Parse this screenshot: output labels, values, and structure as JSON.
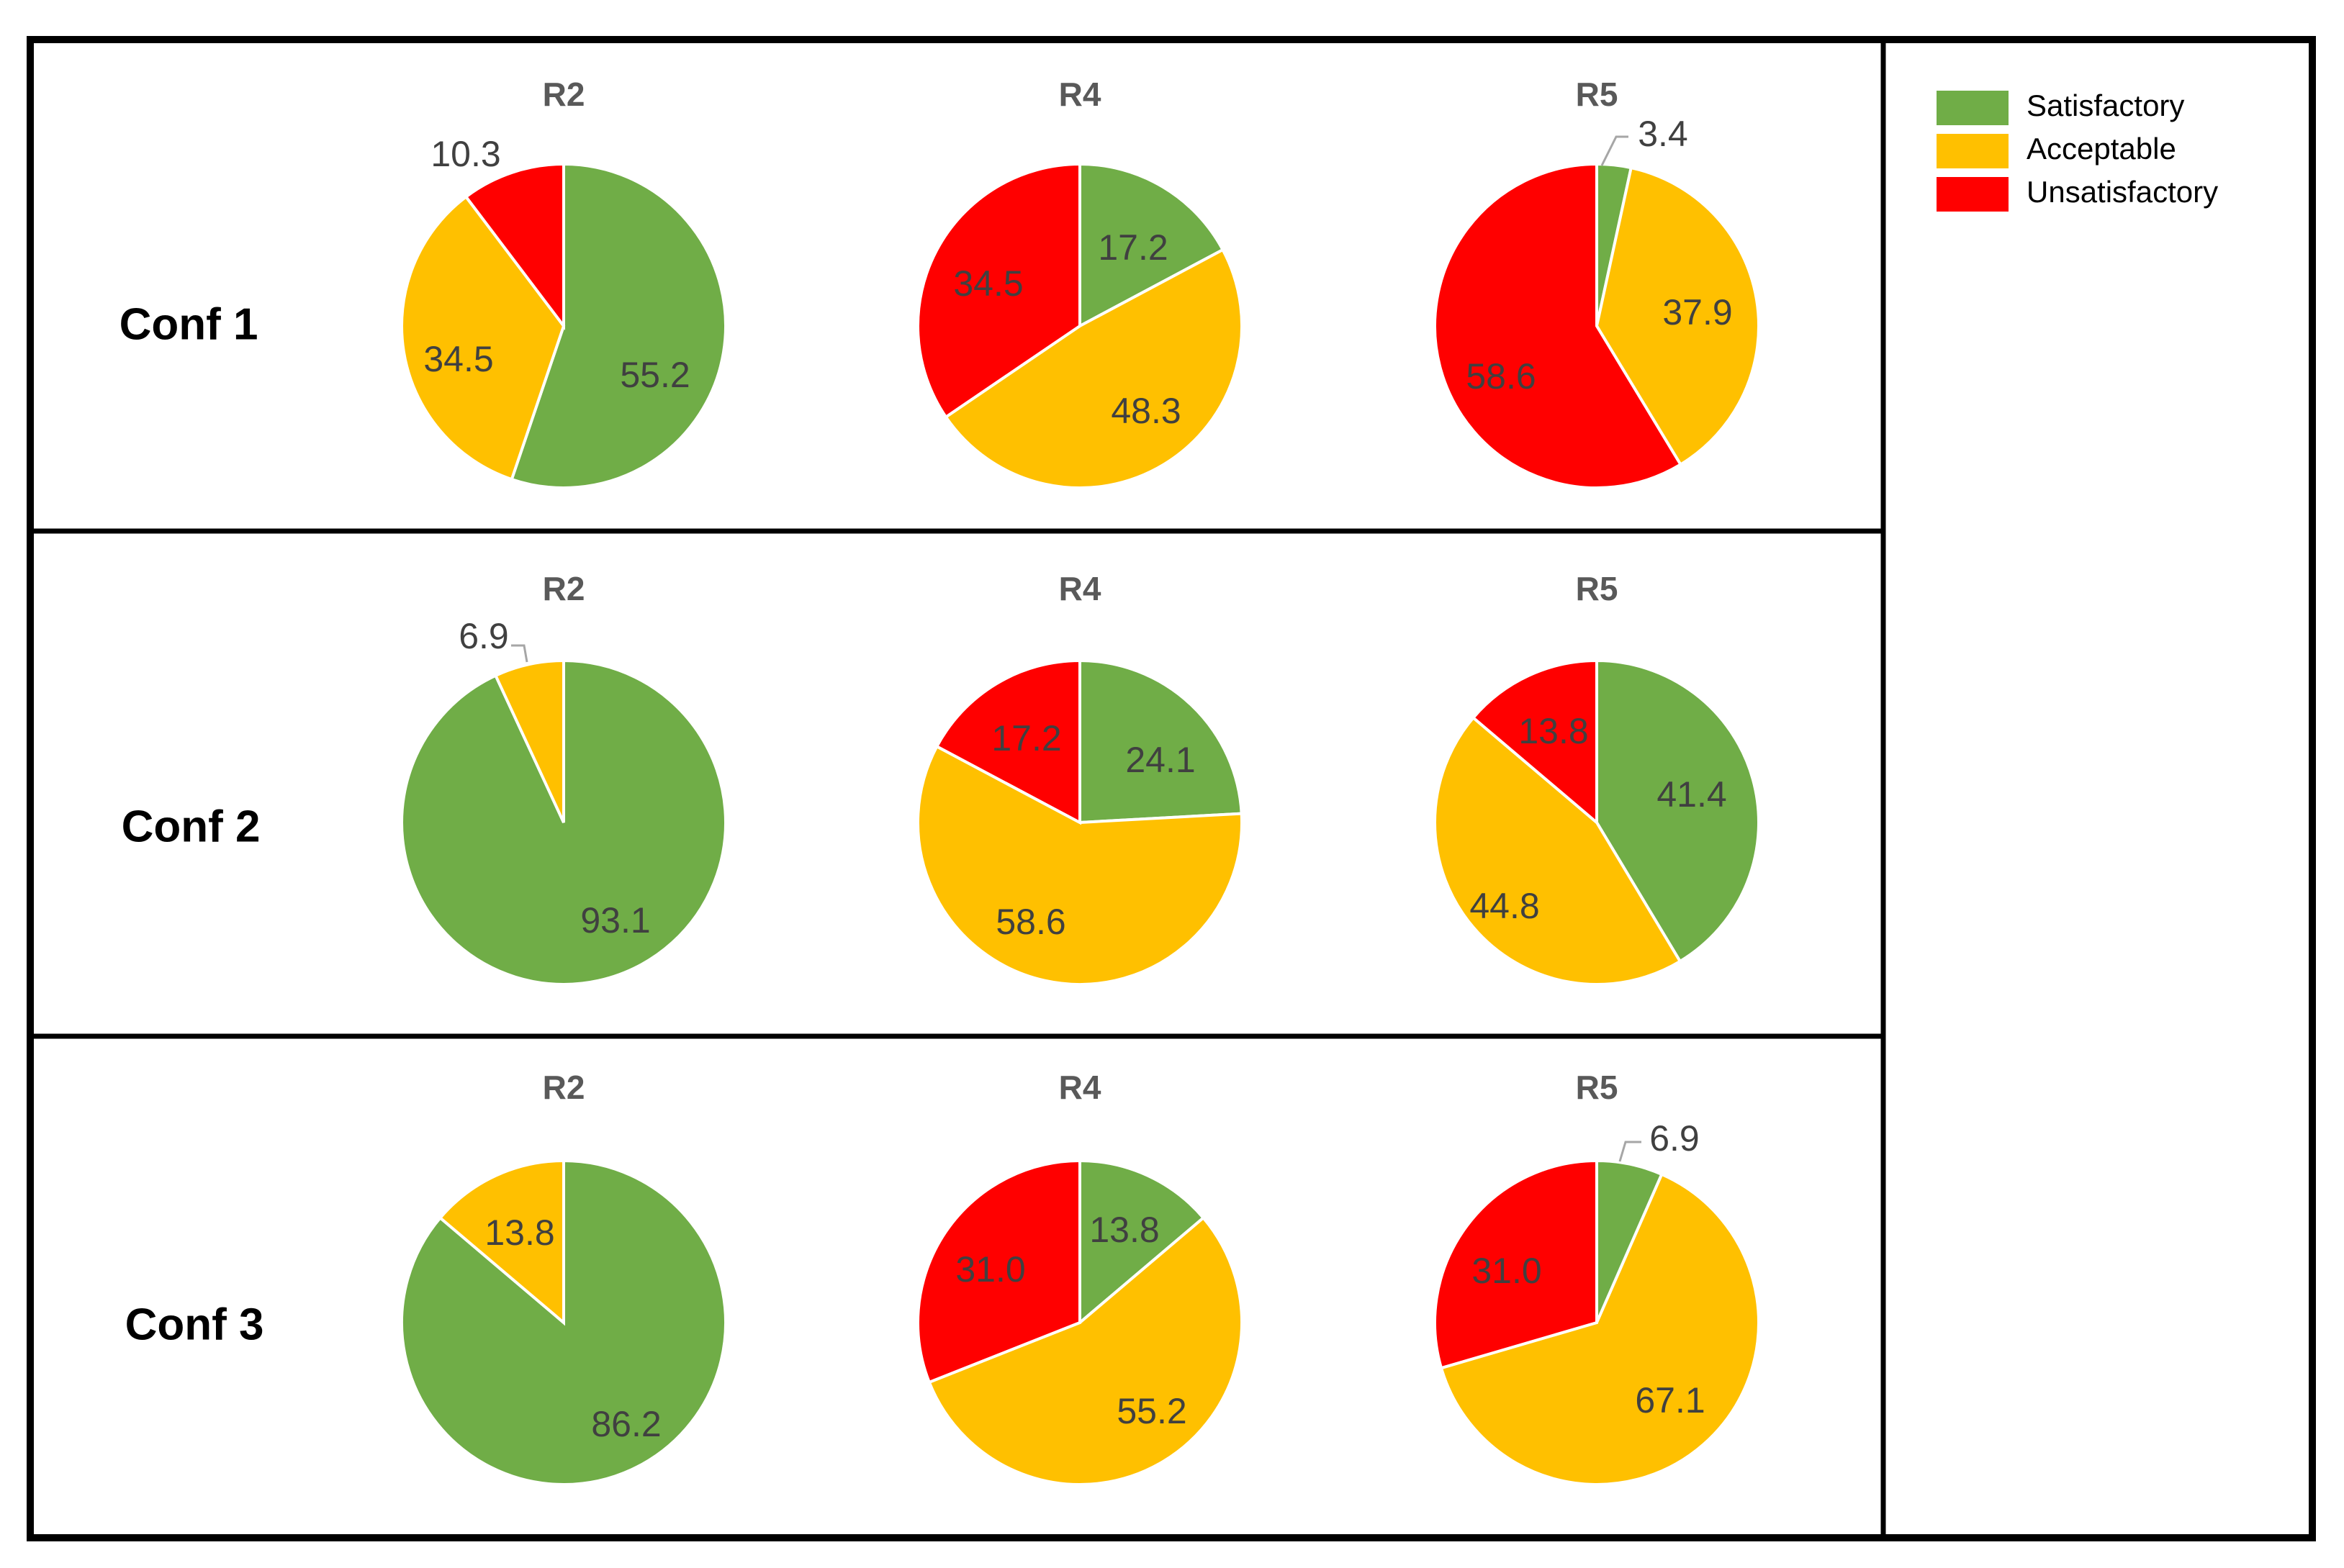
{
  "legend": [
    {
      "key": "satisfactory",
      "label": "Satisfactory",
      "color": "#70AD47"
    },
    {
      "key": "acceptable",
      "label": "Acceptable",
      "color": "#FFC000"
    },
    {
      "key": "unsatisfactory",
      "label": "Unsatisfactory",
      "color": "#FF0000"
    }
  ],
  "chart_data": [
    {
      "type": "pie",
      "row_label": "Conf 1",
      "title": "R2",
      "series": [
        {
          "category": "Satisfactory",
          "value": 55.2,
          "label": "55.2"
        },
        {
          "category": "Acceptable",
          "value": 34.5,
          "label": "34.5"
        },
        {
          "category": "Unsatisfactory",
          "value": 10.3,
          "label": "10.3"
        }
      ]
    },
    {
      "type": "pie",
      "row_label": "Conf 1",
      "title": "R4",
      "series": [
        {
          "category": "Satisfactory",
          "value": 17.2,
          "label": "17.2"
        },
        {
          "category": "Acceptable",
          "value": 48.3,
          "label": "48.3"
        },
        {
          "category": "Unsatisfactory",
          "value": 34.5,
          "label": "34.5"
        }
      ]
    },
    {
      "type": "pie",
      "row_label": "Conf 1",
      "title": "R5",
      "series": [
        {
          "category": "Satisfactory",
          "value": 3.4,
          "label": "3.4"
        },
        {
          "category": "Acceptable",
          "value": 37.9,
          "label": "37.9"
        },
        {
          "category": "Unsatisfactory",
          "value": 58.6,
          "label": "58.6"
        }
      ]
    },
    {
      "type": "pie",
      "row_label": "Conf 2",
      "title": "R2",
      "series": [
        {
          "category": "Satisfactory",
          "value": 93.1,
          "label": "93.1"
        },
        {
          "category": "Acceptable",
          "value": 6.9,
          "label": "6.9"
        },
        {
          "category": "Unsatisfactory",
          "value": 0,
          "label": ""
        }
      ]
    },
    {
      "type": "pie",
      "row_label": "Conf 2",
      "title": "R4",
      "series": [
        {
          "category": "Satisfactory",
          "value": 24.1,
          "label": "24.1"
        },
        {
          "category": "Acceptable",
          "value": 58.6,
          "label": "58.6"
        },
        {
          "category": "Unsatisfactory",
          "value": 17.2,
          "label": "17.2"
        }
      ]
    },
    {
      "type": "pie",
      "row_label": "Conf 2",
      "title": "R5",
      "series": [
        {
          "category": "Satisfactory",
          "value": 41.4,
          "label": "41.4"
        },
        {
          "category": "Acceptable",
          "value": 44.8,
          "label": "44.8"
        },
        {
          "category": "Unsatisfactory",
          "value": 13.8,
          "label": "13.8"
        }
      ]
    },
    {
      "type": "pie",
      "row_label": "Conf 3",
      "title": "R2",
      "series": [
        {
          "category": "Satisfactory",
          "value": 86.2,
          "label": "86.2"
        },
        {
          "category": "Acceptable",
          "value": 13.8,
          "label": "13.8"
        },
        {
          "category": "Unsatisfactory",
          "value": 0,
          "label": ""
        }
      ]
    },
    {
      "type": "pie",
      "row_label": "Conf 3",
      "title": "R4",
      "series": [
        {
          "category": "Satisfactory",
          "value": 13.8,
          "label": "13.8"
        },
        {
          "category": "Acceptable",
          "value": 55.2,
          "label": "55.2"
        },
        {
          "category": "Unsatisfactory",
          "value": 31.0,
          "label": "31.0"
        }
      ]
    },
    {
      "type": "pie",
      "row_label": "Conf 3",
      "title": "R5",
      "series": [
        {
          "category": "Satisfactory",
          "value": 6.9,
          "label": "6.9"
        },
        {
          "category": "Acceptable",
          "value": 67.1,
          "label": "67.1"
        },
        {
          "category": "Unsatisfactory",
          "value": 31.0,
          "label": "31.0"
        }
      ]
    }
  ]
}
